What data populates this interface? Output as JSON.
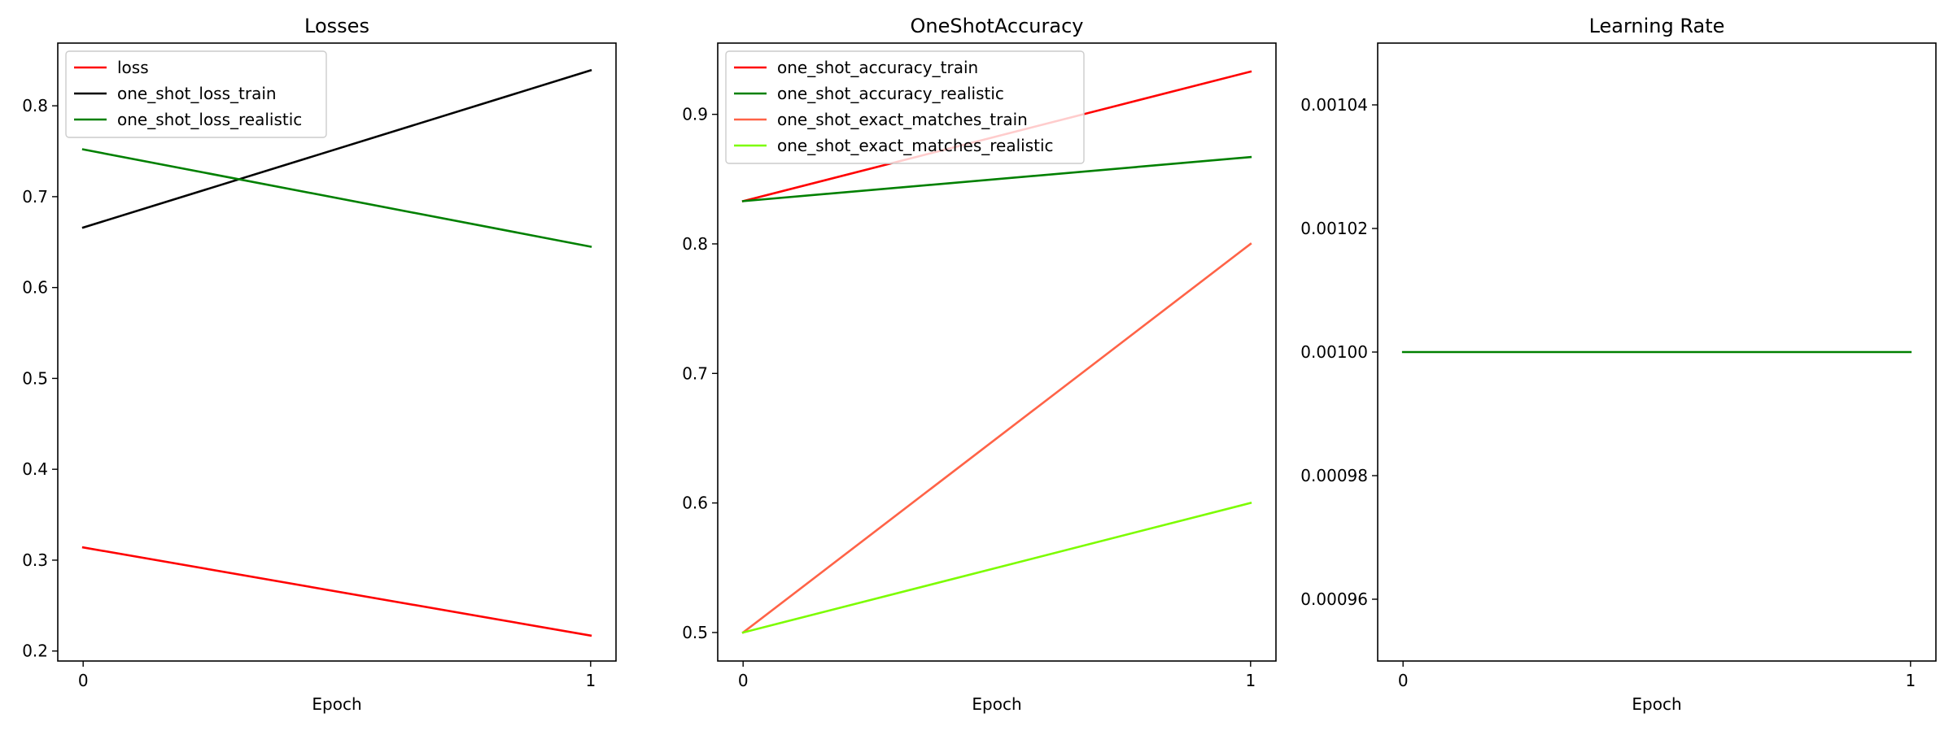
{
  "chart_data": [
    {
      "type": "line",
      "title": "Losses",
      "xlabel": "Epoch",
      "ylabel": "",
      "x": [
        0,
        1
      ],
      "xticks": [
        0,
        1
      ],
      "yticks": [
        0.2,
        0.3,
        0.4,
        0.5,
        0.6,
        0.7,
        0.8
      ],
      "ylim": [
        0.189,
        0.869
      ],
      "legend": "upper-left",
      "series": [
        {
          "name": "loss",
          "values": [
            0.314,
            0.217
          ],
          "color": "#ff0000"
        },
        {
          "name": "one_shot_loss_train",
          "values": [
            0.666,
            0.839
          ],
          "color": "#000000"
        },
        {
          "name": "one_shot_loss_realistic",
          "values": [
            0.752,
            0.645
          ],
          "color": "#008000"
        }
      ]
    },
    {
      "type": "line",
      "title": "OneShotAccuracy",
      "xlabel": "Epoch",
      "ylabel": "",
      "x": [
        0,
        1
      ],
      "xticks": [
        0,
        1
      ],
      "yticks": [
        0.5,
        0.6,
        0.7,
        0.8,
        0.9
      ],
      "ylim": [
        0.478,
        0.955
      ],
      "legend": "upper-left",
      "series": [
        {
          "name": "one_shot_accuracy_train",
          "values": [
            0.833,
            0.933
          ],
          "color": "#ff0000"
        },
        {
          "name": "one_shot_accuracy_realistic",
          "values": [
            0.833,
            0.867
          ],
          "color": "#008000"
        },
        {
          "name": "one_shot_exact_matches_train",
          "values": [
            0.5,
            0.8
          ],
          "color": "#ff6347"
        },
        {
          "name": "one_shot_exact_matches_realistic",
          "values": [
            0.5,
            0.6
          ],
          "color": "#7cfc00"
        }
      ]
    },
    {
      "type": "line",
      "title": "Learning Rate",
      "xlabel": "Epoch",
      "ylabel": "",
      "x": [
        0,
        1
      ],
      "xticks": [
        0,
        1
      ],
      "yticks": [
        0.00096,
        0.00098,
        0.001,
        0.00102,
        0.00104
      ],
      "ytick_labels": [
        "0.00096",
        "0.00098",
        "0.00100",
        "0.00102",
        "0.00104"
      ],
      "ylim": [
        0.00095,
        0.00105
      ],
      "legend": "none",
      "series": [
        {
          "values": [
            0.001,
            0.001
          ],
          "color": "#008000"
        }
      ]
    }
  ]
}
